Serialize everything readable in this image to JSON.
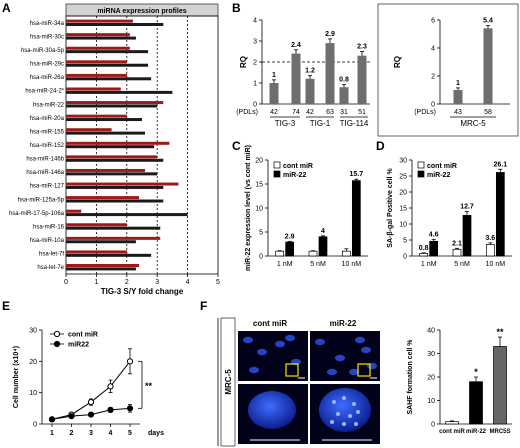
{
  "panels": {
    "A": "A",
    "B": "B",
    "C": "C",
    "D": "D",
    "E": "E",
    "F": "F"
  },
  "chart_data": [
    {
      "id": "A",
      "type": "bar",
      "title": "miRNA expression profiles",
      "xlabel": "TIG-3 S/Y fold change",
      "xlim": [
        0,
        5
      ],
      "xticks": [
        "0",
        "1",
        "2",
        "3",
        "4",
        "5"
      ],
      "reference_lines": [
        1,
        2,
        3,
        4
      ],
      "colors": {
        "series1": "#a01818",
        "series2": "#1a1a1a"
      },
      "categories": [
        "hsa-miR-34a",
        "hsa-miR-30c",
        "hsa-miR-30a-5p",
        "hsa-miR-29c",
        "hsa-miR-26a",
        "hsa-miR-24-2*",
        "hsa-miR-22",
        "hsa-miR-20a",
        "hsa-miR-155",
        "hsa-miR-152",
        "hsa-miR-146b",
        "hsa-miR-146a",
        "hsa-miR-127",
        "hsa-miR-125a-5p",
        "hsa-miR-17-5p-106a",
        "hsa-miR-16",
        "hsa-miR-10a",
        "hsa-let-7f",
        "hsa-let-7e"
      ],
      "series": [
        {
          "values": [
            2.2,
            2.1,
            2.1,
            2.0,
            2.0,
            1.8,
            3.2,
            2.0,
            1.5,
            3.4,
            3.0,
            2.6,
            3.7,
            2.4,
            0.5,
            2.0,
            3.1,
            2.0,
            2.4
          ]
        },
        {
          "values": [
            3.2,
            2.3,
            2.7,
            2.7,
            2.8,
            3.5,
            3.0,
            2.5,
            2.6,
            2.9,
            3.2,
            3.0,
            3.2,
            3.2,
            4.0,
            3.1,
            2.3,
            2.8,
            2.3
          ]
        }
      ]
    },
    {
      "id": "B1",
      "type": "bar",
      "ylabel": "RQ",
      "ylim": [
        0,
        4
      ],
      "yticks": [
        "0",
        "1",
        "2",
        "3",
        "4"
      ],
      "dashed_line": 2,
      "axis_prefix": "(PDLs)",
      "categories": [
        "42",
        "74",
        "42",
        "63",
        "31",
        "51"
      ],
      "groups": [
        "TIG-3",
        "TIG-1",
        "TIG-114"
      ],
      "values": [
        1,
        2.4,
        1.2,
        2.9,
        0.8,
        2.3
      ],
      "errors": [
        0.15,
        0.18,
        0.15,
        0.2,
        0.12,
        0.2
      ],
      "labels": [
        "1",
        "2.4",
        "1.2",
        "2.9",
        "0.8",
        "2.3"
      ],
      "color": "#6e6e6e"
    },
    {
      "id": "B2",
      "type": "bar",
      "ylabel": "RQ",
      "ylim": [
        0,
        6
      ],
      "yticks": [
        "0",
        "2",
        "4",
        "6"
      ],
      "axis_prefix": "(PDLs)",
      "categories": [
        "43",
        "58"
      ],
      "groups": [
        "MRC-5"
      ],
      "values": [
        1,
        5.4
      ],
      "errors": [
        0.15,
        0.2
      ],
      "labels": [
        "1",
        "5.4"
      ],
      "color": "#6e6e6e"
    },
    {
      "id": "C",
      "type": "bar",
      "ylabel": "miR-22 expression level (vs cont miR)",
      "ylim": [
        0,
        20
      ],
      "yticks": [
        "0",
        "5",
        "10",
        "15",
        "20"
      ],
      "categories": [
        "1 nM",
        "5 nM",
        "10 nM"
      ],
      "series": [
        {
          "name": "cont miR",
          "values": [
            1,
            1,
            1
          ],
          "errors": [
            0.1,
            0.1,
            0.5
          ],
          "color": "#ffffff"
        },
        {
          "name": "miR-22",
          "values": [
            2.9,
            4,
            15.7
          ],
          "errors": [
            0.15,
            0.2,
            0.3
          ],
          "color": "#000000"
        }
      ],
      "labels": [
        "2.9",
        "4",
        "15.7"
      ]
    },
    {
      "id": "D",
      "type": "bar",
      "ylabel": "SA-β-gal Positive cell %",
      "ylim": [
        0,
        30
      ],
      "yticks": [
        "0",
        "5",
        "10",
        "15",
        "20",
        "25",
        "30"
      ],
      "categories": [
        "1 nM",
        "5 nM",
        "10 nM"
      ],
      "series": [
        {
          "name": "cont miR",
          "values": [
            0.8,
            2.1,
            3.6
          ],
          "errors": [
            0.2,
            0.3,
            0.5
          ],
          "color": "#ffffff"
        },
        {
          "name": "miR-22",
          "values": [
            4.6,
            12.7,
            26.1
          ],
          "errors": [
            0.6,
            1.2,
            1.0
          ],
          "color": "#000000"
        }
      ],
      "labels_cont": [
        "0.8",
        "2.1",
        "3.6"
      ],
      "labels_mir": [
        "4.6",
        "12.7",
        "26.1"
      ]
    },
    {
      "id": "E",
      "type": "line",
      "ylabel": "Cell number (x10⁴)",
      "xlabel": "days",
      "ylim": [
        0,
        30
      ],
      "yticks": [
        "0",
        "10",
        "20",
        "30"
      ],
      "x": [
        1,
        2,
        3,
        4,
        5
      ],
      "xticks": [
        "1",
        "2",
        "3",
        "4",
        "5"
      ],
      "series": [
        {
          "name": "cont miR",
          "values": [
            1.5,
            3,
            7,
            12,
            20
          ],
          "errors": [
            0.3,
            0.5,
            1,
            2,
            4
          ],
          "marker": "open"
        },
        {
          "name": "miR22",
          "values": [
            1.5,
            2.5,
            3,
            4.5,
            5
          ],
          "errors": [
            0.3,
            0.3,
            0.5,
            0.8,
            1.2
          ],
          "marker": "filled"
        }
      ],
      "significance": "**"
    },
    {
      "id": "F",
      "type": "bar",
      "ylabel": "SAHF formation cell %",
      "ylim": [
        0,
        40
      ],
      "yticks": [
        "0",
        "10",
        "20",
        "30",
        "40"
      ],
      "categories": [
        "cont miR",
        "miR-22",
        "MRC5S"
      ],
      "values": [
        1,
        18,
        33
      ],
      "errors": [
        0.3,
        2,
        4
      ],
      "colors": [
        "#ffffff",
        "#000000",
        "#666666"
      ],
      "significance": [
        "",
        "*",
        "**"
      ]
    }
  ],
  "micrographs": {
    "side_label": "MRC-5",
    "col1": "cont miR",
    "col2": "miR-22"
  }
}
